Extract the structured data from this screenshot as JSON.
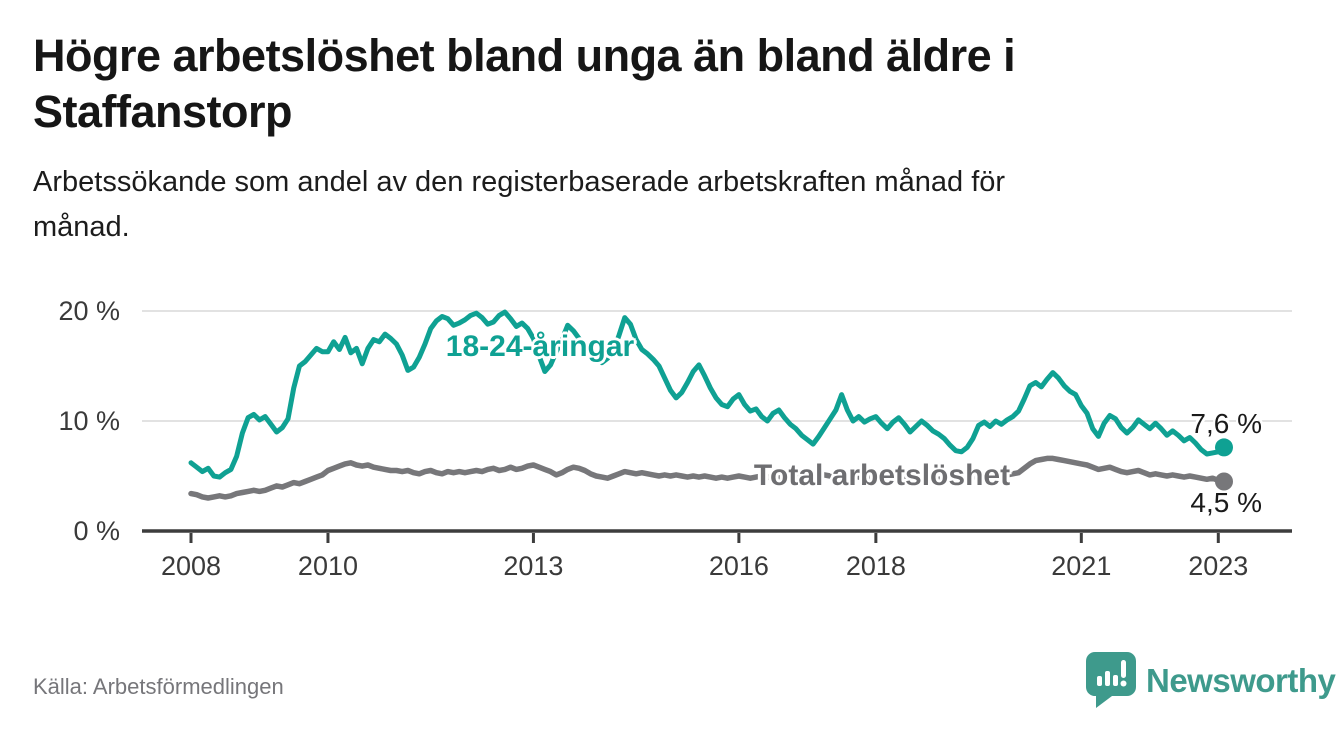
{
  "header": {
    "title_lines": [
      "Högre arbetslöshet bland unga än bland äldre i",
      "Staffanstorp"
    ],
    "subtitle_lines": [
      "Arbetssökande som andel av den registerbaserade arbetskraften månad för",
      "månad."
    ]
  },
  "footer": {
    "source": "Källa: Arbetsförmedlingen",
    "brand_name": "Newsworthy",
    "brand_icon": "speech-bubble-bar-chart-icon",
    "brand_color": "#3E9A8C"
  },
  "chart_data": {
    "type": "line",
    "x_start": "2008-01",
    "x_end": "2023-02",
    "x_tick_years": [
      2008,
      2010,
      2013,
      2016,
      2018,
      2021,
      2023
    ],
    "y_ticks": [
      {
        "value": 0,
        "label": "0 %"
      },
      {
        "value": 10,
        "label": "10 %"
      },
      {
        "value": 20,
        "label": "20 %"
      }
    ],
    "ylim": [
      0,
      21.8
    ],
    "grid": true,
    "legend_position": "inline-labels",
    "series": [
      {
        "name": "18-24-åringar",
        "color": "#0FA193",
        "end_label": "7,6 %",
        "end_value": 7.6,
        "values": [
          6.2,
          5.8,
          5.4,
          5.7,
          5.0,
          4.9,
          5.3,
          5.6,
          6.8,
          8.9,
          10.3,
          10.6,
          10.1,
          10.4,
          9.7,
          9.0,
          9.4,
          10.2,
          13.0,
          15.0,
          15.4,
          16.0,
          16.6,
          16.3,
          16.3,
          17.2,
          16.5,
          17.6,
          16.2,
          16.6,
          15.2,
          16.6,
          17.4,
          17.2,
          17.9,
          17.5,
          17.0,
          16.0,
          14.6,
          14.9,
          15.8,
          17.0,
          18.4,
          19.1,
          19.5,
          19.3,
          18.7,
          18.9,
          19.2,
          19.6,
          19.8,
          19.4,
          18.8,
          19.0,
          19.6,
          19.9,
          19.3,
          18.6,
          18.9,
          18.4,
          17.5,
          15.9,
          14.5,
          15.1,
          16.3,
          17.4,
          18.7,
          18.2,
          17.5,
          16.9,
          16.2,
          15.6,
          15.3,
          15.7,
          16.4,
          17.8,
          19.4,
          18.8,
          17.4,
          16.5,
          16.1,
          15.6,
          15.0,
          13.9,
          12.8,
          12.1,
          12.6,
          13.5,
          14.5,
          15.1,
          14.1,
          13.0,
          12.1,
          11.5,
          11.3,
          12.0,
          12.4,
          11.5,
          10.9,
          11.1,
          10.4,
          10.0,
          10.7,
          11.0,
          10.3,
          9.7,
          9.3,
          8.7,
          8.3,
          7.9,
          8.6,
          9.4,
          10.2,
          11.0,
          12.4,
          11.0,
          10.0,
          10.4,
          9.9,
          10.2,
          10.4,
          9.8,
          9.3,
          9.9,
          10.3,
          9.7,
          9.0,
          9.5,
          10.0,
          9.6,
          9.1,
          8.8,
          8.4,
          7.8,
          7.3,
          7.2,
          7.6,
          8.4,
          9.6,
          9.9,
          9.5,
          10.0,
          9.7,
          10.1,
          10.4,
          10.9,
          12.0,
          13.2,
          13.5,
          13.1,
          13.8,
          14.4,
          13.9,
          13.2,
          12.7,
          12.4,
          11.4,
          10.7,
          9.3,
          8.6,
          9.8,
          10.5,
          10.2,
          9.4,
          8.9,
          9.4,
          10.1,
          9.7,
          9.3,
          9.8,
          9.3,
          8.7,
          9.1,
          8.7,
          8.2,
          8.5,
          8.0,
          7.4,
          7.0,
          7.1,
          7.2,
          7.6
        ]
      },
      {
        "name": "Total arbetslöshet",
        "color": "#77777A",
        "end_label": "4,5 %",
        "end_value": 4.5,
        "values": [
          3.4,
          3.3,
          3.1,
          3.0,
          3.1,
          3.2,
          3.1,
          3.2,
          3.4,
          3.5,
          3.6,
          3.7,
          3.6,
          3.7,
          3.9,
          4.1,
          4.0,
          4.2,
          4.4,
          4.3,
          4.5,
          4.7,
          4.9,
          5.1,
          5.5,
          5.7,
          5.9,
          6.1,
          6.2,
          6.0,
          5.9,
          6.0,
          5.8,
          5.7,
          5.6,
          5.5,
          5.5,
          5.4,
          5.5,
          5.3,
          5.2,
          5.4,
          5.5,
          5.3,
          5.2,
          5.4,
          5.3,
          5.4,
          5.3,
          5.4,
          5.5,
          5.4,
          5.6,
          5.7,
          5.5,
          5.6,
          5.8,
          5.6,
          5.7,
          5.9,
          6.0,
          5.8,
          5.6,
          5.4,
          5.1,
          5.3,
          5.6,
          5.8,
          5.7,
          5.5,
          5.2,
          5.0,
          4.9,
          4.8,
          5.0,
          5.2,
          5.4,
          5.3,
          5.2,
          5.3,
          5.2,
          5.1,
          5.0,
          5.1,
          5.0,
          5.1,
          5.0,
          4.9,
          5.0,
          4.9,
          5.0,
          4.9,
          4.8,
          4.9,
          4.8,
          4.9,
          5.0,
          4.9,
          4.8,
          4.9,
          5.0,
          4.9,
          4.8,
          4.9,
          5.0,
          4.9,
          4.8,
          4.9,
          5.0,
          4.9,
          5.0,
          5.1,
          5.0,
          4.9,
          5.0,
          5.1,
          5.0,
          4.9,
          4.8,
          4.9,
          4.8,
          4.7,
          4.8,
          4.9,
          4.8,
          4.7,
          4.8,
          4.9,
          4.8,
          4.7,
          4.8,
          4.7,
          4.8,
          4.9,
          4.8,
          4.9,
          5.0,
          4.9,
          5.0,
          5.1,
          5.0,
          4.9,
          5.0,
          5.1,
          5.2,
          5.3,
          5.7,
          6.1,
          6.4,
          6.5,
          6.6,
          6.6,
          6.5,
          6.4,
          6.3,
          6.2,
          6.1,
          6.0,
          5.8,
          5.6,
          5.7,
          5.8,
          5.6,
          5.4,
          5.3,
          5.4,
          5.5,
          5.3,
          5.1,
          5.2,
          5.1,
          5.0,
          5.1,
          5.0,
          4.9,
          5.0,
          4.9,
          4.8,
          4.7,
          4.8,
          4.6,
          4.5
        ]
      }
    ]
  }
}
